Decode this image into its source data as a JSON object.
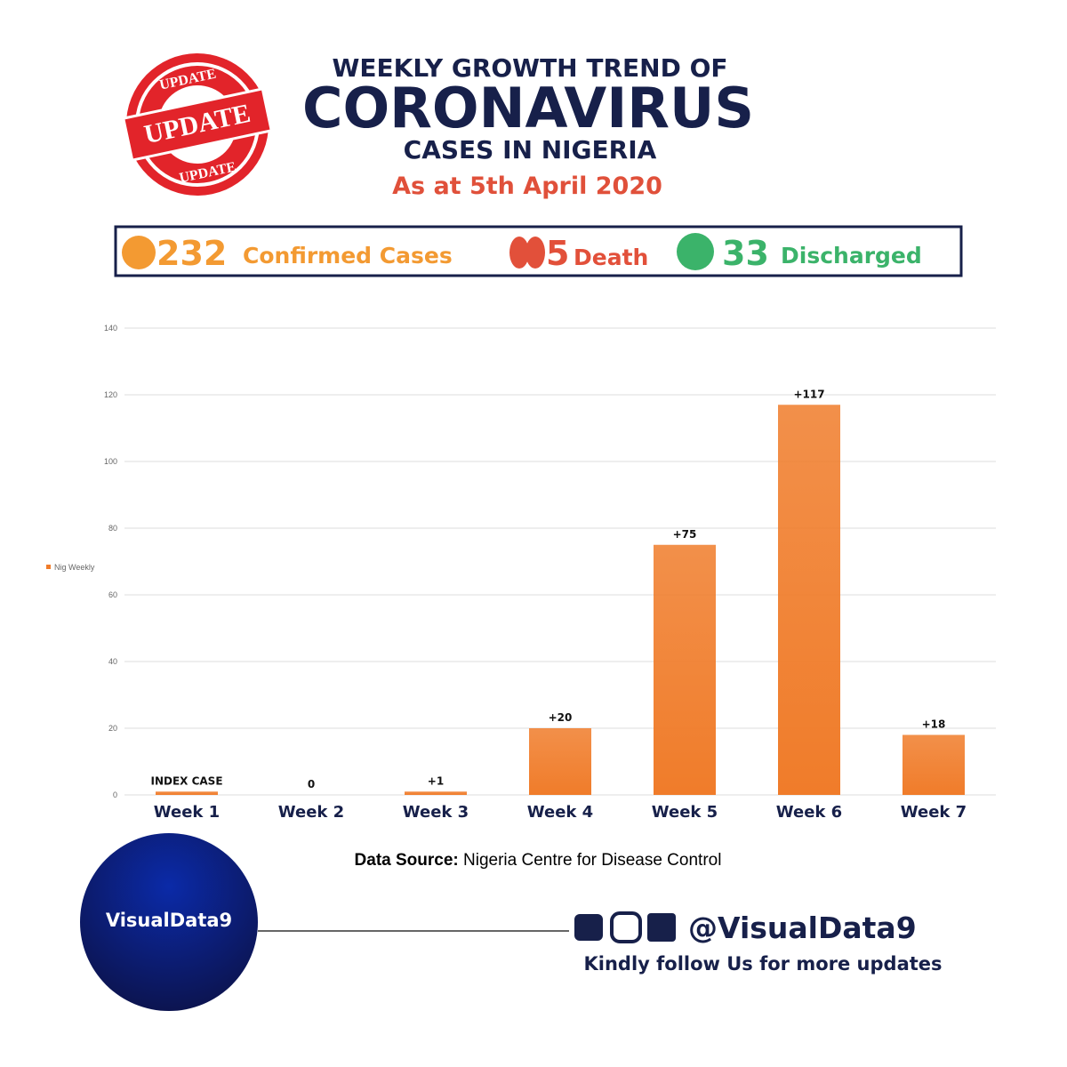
{
  "stamp": {
    "text": "UPDATE"
  },
  "header": {
    "line1": "WEEKLY GROWTH TREND OF",
    "line2": "CORONAVIRUS",
    "line3": "CASES IN NIGERIA",
    "date": "As at  5th April 2020"
  },
  "stats": {
    "confirmed": 232,
    "confirmed_label": "Confirmed Cases",
    "deaths": 5,
    "deaths_label": "Death",
    "discharged": 33,
    "discharged_label": "Discharged"
  },
  "chart_data": {
    "type": "bar",
    "categories": [
      "Week 1",
      "Week 2",
      "Week 3",
      "Week 4",
      "Week 5",
      "Week 6",
      "Week 7"
    ],
    "series": [
      {
        "name": "Nig Weekly",
        "color": "#f07c2a",
        "values": [
          1,
          0,
          1,
          20,
          75,
          117,
          18
        ],
        "value_labels": [
          "INDEX CASE",
          "0",
          "+1",
          "+20",
          "+75",
          "+117",
          "+18"
        ]
      }
    ],
    "ylim": [
      0,
      140
    ],
    "yticks": [
      0,
      20,
      40,
      60,
      80,
      100,
      120,
      140
    ],
    "grid": true,
    "legend": "left"
  },
  "source": {
    "label": "Data Source:",
    "text": "Nigeria Centre for Disease Control"
  },
  "footer": {
    "brand": "VisualData9",
    "handle": "@VisualData9",
    "tagline": "Kindly follow Us for more updates"
  }
}
